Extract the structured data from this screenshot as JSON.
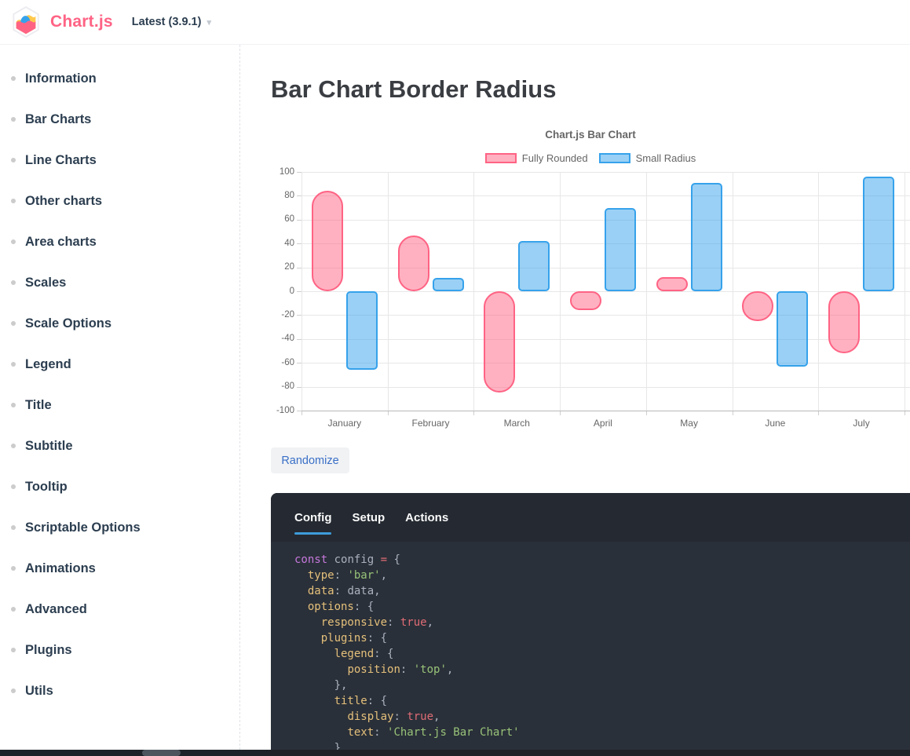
{
  "header": {
    "brand": "Chart.js",
    "version_label": "Latest (3.9.1)",
    "brand_color": "#ff6384"
  },
  "sidebar": {
    "items": [
      {
        "label": "Information"
      },
      {
        "label": "Bar Charts"
      },
      {
        "label": "Line Charts"
      },
      {
        "label": "Other charts"
      },
      {
        "label": "Area charts"
      },
      {
        "label": "Scales"
      },
      {
        "label": "Scale Options"
      },
      {
        "label": "Legend"
      },
      {
        "label": "Title"
      },
      {
        "label": "Subtitle"
      },
      {
        "label": "Tooltip"
      },
      {
        "label": "Scriptable Options"
      },
      {
        "label": "Animations"
      },
      {
        "label": "Advanced"
      },
      {
        "label": "Plugins"
      },
      {
        "label": "Utils"
      }
    ]
  },
  "main": {
    "page_title": "Bar Chart Border Radius",
    "randomize_label": "Randomize"
  },
  "chart_data": {
    "type": "bar",
    "title": "Chart.js Bar Chart",
    "categories": [
      "January",
      "February",
      "March",
      "April",
      "May",
      "June",
      "July"
    ],
    "series": [
      {
        "name": "Fully Rounded",
        "values": [
          84,
          47,
          -85,
          -16,
          12,
          -25,
          -52
        ],
        "fill": "rgba(255,99,132,0.5)",
        "border_color": "#ff6384",
        "border_radius": "pill"
      },
      {
        "name": "Small Radius",
        "values": [
          -66,
          11,
          42,
          70,
          91,
          -63,
          96
        ],
        "fill": "rgba(54,162,235,0.5)",
        "border_color": "#36a2eb",
        "border_radius": "small"
      }
    ],
    "ylim": [
      -100,
      100
    ],
    "ytick_step": 20,
    "legend_position": "top",
    "grid": true
  },
  "code_panel": {
    "tabs": [
      "Config",
      "Setup",
      "Actions"
    ],
    "active_tab": "Config",
    "lines": [
      [
        [
          "const",
          "kw"
        ],
        [
          " config ",
          "id"
        ],
        [
          "=",
          "op"
        ],
        [
          " {",
          "pu"
        ]
      ],
      [
        [
          "  ",
          "pu"
        ],
        [
          "type",
          "key"
        ],
        [
          ": ",
          "pu"
        ],
        [
          "'bar'",
          "str"
        ],
        [
          ",",
          "pu"
        ]
      ],
      [
        [
          "  ",
          "pu"
        ],
        [
          "data",
          "key"
        ],
        [
          ": ",
          "pu"
        ],
        [
          "data",
          "id"
        ],
        [
          ",",
          "pu"
        ]
      ],
      [
        [
          "  ",
          "pu"
        ],
        [
          "options",
          "key"
        ],
        [
          ": ",
          "pu"
        ],
        [
          "{",
          "pu"
        ]
      ],
      [
        [
          "    ",
          "pu"
        ],
        [
          "responsive",
          "key"
        ],
        [
          ": ",
          "pu"
        ],
        [
          "true",
          "bool"
        ],
        [
          ",",
          "pu"
        ]
      ],
      [
        [
          "    ",
          "pu"
        ],
        [
          "plugins",
          "key"
        ],
        [
          ": ",
          "pu"
        ],
        [
          "{",
          "pu"
        ]
      ],
      [
        [
          "      ",
          "pu"
        ],
        [
          "legend",
          "key"
        ],
        [
          ": ",
          "pu"
        ],
        [
          "{",
          "pu"
        ]
      ],
      [
        [
          "        ",
          "pu"
        ],
        [
          "position",
          "key"
        ],
        [
          ": ",
          "pu"
        ],
        [
          "'top'",
          "str"
        ],
        [
          ",",
          "pu"
        ]
      ],
      [
        [
          "      ",
          "pu"
        ],
        [
          "},",
          "pu"
        ]
      ],
      [
        [
          "      ",
          "pu"
        ],
        [
          "title",
          "key"
        ],
        [
          ": ",
          "pu"
        ],
        [
          "{",
          "pu"
        ]
      ],
      [
        [
          "        ",
          "pu"
        ],
        [
          "display",
          "key"
        ],
        [
          ": ",
          "pu"
        ],
        [
          "true",
          "bool"
        ],
        [
          ",",
          "pu"
        ]
      ],
      [
        [
          "        ",
          "pu"
        ],
        [
          "text",
          "key"
        ],
        [
          ": ",
          "pu"
        ],
        [
          "'Chart.js Bar Chart'",
          "str"
        ]
      ],
      [
        [
          "      ",
          "pu"
        ],
        [
          "}",
          "pu"
        ]
      ]
    ]
  }
}
